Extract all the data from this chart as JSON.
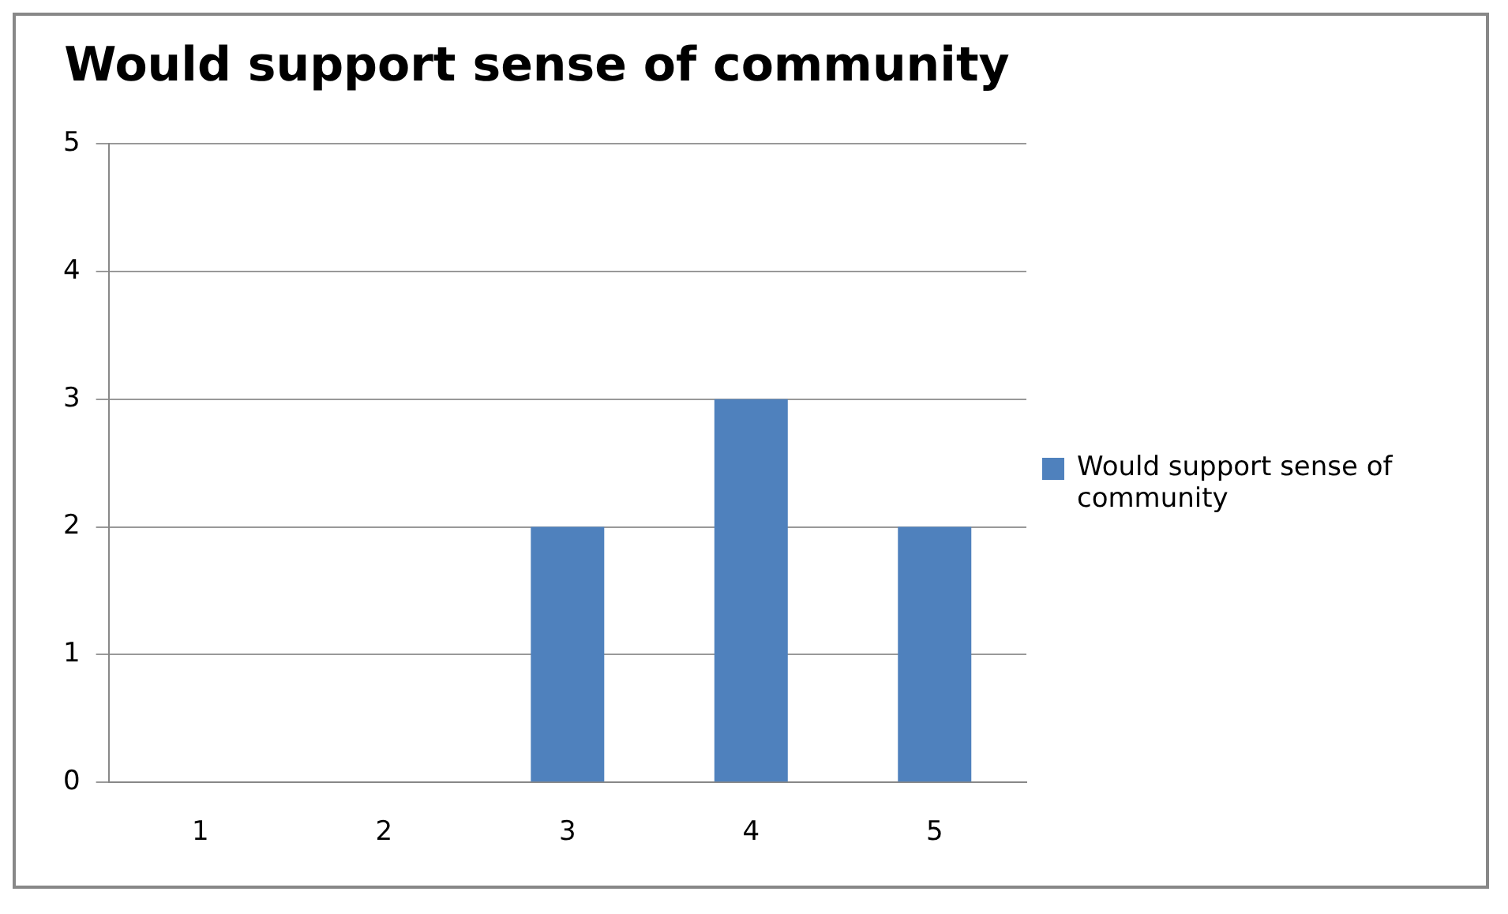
{
  "chart_data": {
    "type": "bar",
    "title": "Would support sense of community",
    "categories": [
      "1",
      "2",
      "3",
      "4",
      "5"
    ],
    "series": [
      {
        "name": "Would support sense of community",
        "color": "#4f81bd",
        "values": [
          0,
          0,
          2,
          3,
          2
        ]
      }
    ],
    "ylim": [
      0,
      5
    ],
    "yticks": [
      0,
      1,
      2,
      3,
      4,
      5
    ],
    "grid": "y",
    "legend": "right"
  }
}
